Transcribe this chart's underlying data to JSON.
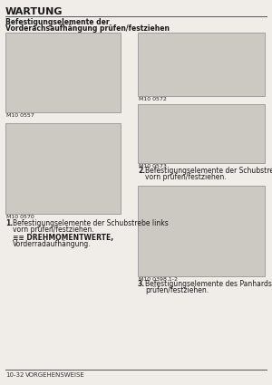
{
  "title": "WARTUNG",
  "subtitle_line1": "Befestigungselemente der",
  "subtitle_line2": "Vorderachsaufhängung prüfen/festziehen",
  "footer_left": "10-32",
  "footer_right": "VORGEHENSWEISE",
  "bg_color": "#f0ede8",
  "img_bg": "#d8d5cf",
  "border_color": "#999999",
  "title_color": "#1a1a1a",
  "text_color": "#1a1a1a",
  "caption1": "M10 0557",
  "caption2": "M10 0572",
  "caption3": "M10 0570",
  "caption4": "M10 0573",
  "caption5": "M10 0398 1-2",
  "step1_num": "1.",
  "step1_line1": "Befestigungselemente der Schubstrebe links",
  "step1_line2": "vorn prüfen/festziehen.",
  "step1_ref1": "≡≡ DREHMOMENTWERTE,",
  "step1_ref2": "Vorderradaufhängung.",
  "step2_num": "2.",
  "step2_line1": "Befestigungselemente der Schubstrebe rechts",
  "step2_line2": "vorn prüfen/festziehen.",
  "step3_num": "3.",
  "step3_line1": "Befestigungselemente des Panhardstabs vorn",
  "step3_line2": "prüfen/festziehen."
}
